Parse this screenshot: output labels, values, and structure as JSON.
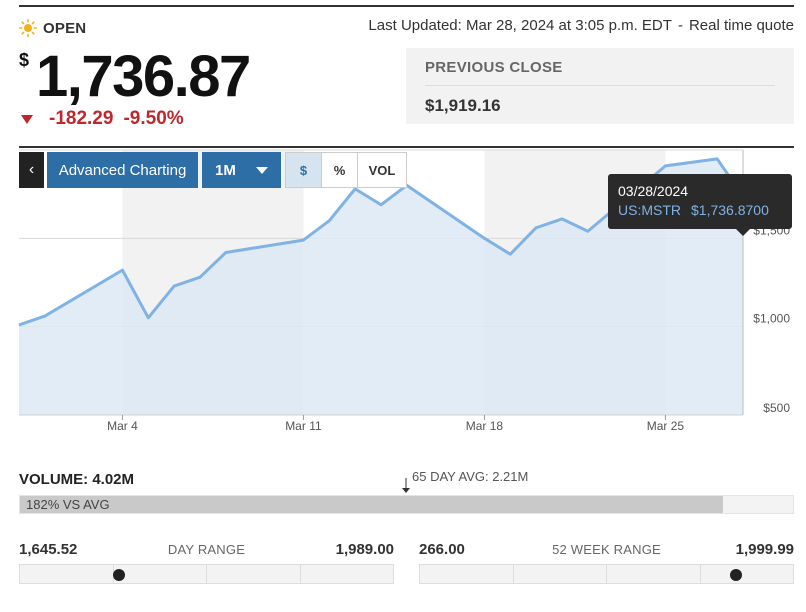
{
  "header": {
    "status_icon": "sun-icon",
    "status_text": "OPEN",
    "last_updated": "Last Updated: Mar 28, 2024 at 3:05 p.m. EDT",
    "separator": "-",
    "quote_type": "Real time quote"
  },
  "quote": {
    "currency_symbol": "$",
    "price": "1,736.87",
    "change": "-182.29",
    "change_pct": "-9.50%",
    "change_color": "#c0272d"
  },
  "previous_close": {
    "label": "PREVIOUS CLOSE",
    "value": "$1,919.16"
  },
  "toolbar": {
    "back_label": "‹",
    "advanced_label": "Advanced Charting",
    "range_label": "1M",
    "dollar_label": "$",
    "percent_label": "%",
    "volume_label": "VOL",
    "accent": "#2d6ea6"
  },
  "tooltip": {
    "date": "03/28/2024",
    "symbol": "US:MSTR",
    "value": "$1,736.8700"
  },
  "chart_data": {
    "type": "area",
    "x": [
      "2024-02-29",
      "2024-03-01",
      "2024-03-04",
      "2024-03-05",
      "2024-03-06",
      "2024-03-07",
      "2024-03-08",
      "2024-03-11",
      "2024-03-12",
      "2024-03-13",
      "2024-03-14",
      "2024-03-15",
      "2024-03-18",
      "2024-03-19",
      "2024-03-20",
      "2024-03-21",
      "2024-03-22",
      "2024-03-25",
      "2024-03-26",
      "2024-03-27",
      "2024-03-28"
    ],
    "series": [
      {
        "values": [
          1010,
          1060,
          1320,
          1050,
          1230,
          1280,
          1420,
          1490,
          1600,
          1780,
          1690,
          1800,
          1500,
          1410,
          1560,
          1610,
          1540,
          1910,
          1930,
          1950,
          1736.87
        ],
        "color": "#7fb2e5"
      }
    ],
    "x_tick_labels": [
      "Mar 4",
      "Mar 11",
      "Mar 18",
      "Mar 25"
    ],
    "x_tick_dates": [
      "2024-03-04",
      "2024-03-11",
      "2024-03-18",
      "2024-03-25"
    ],
    "y_tick_labels": [
      "$500",
      "$1,000",
      "$1,500"
    ],
    "y_tick_values": [
      500,
      1000,
      1500
    ],
    "ylim": [
      500,
      2000
    ],
    "y_axis_side": "right",
    "grid": true
  },
  "volume": {
    "label": "VOLUME: 4.02M",
    "avg_label": "65 DAY AVG: 2.21M",
    "vs_avg_label": "182% VS AVG",
    "vs_avg_pct": 182
  },
  "day_range": {
    "title": "DAY RANGE",
    "low": "1,645.52",
    "high": "1,989.00",
    "current": 1736.87,
    "low_value": 1645.52,
    "high_value": 1989.0
  },
  "week52_range": {
    "title": "52 WEEK RANGE",
    "low": "266.00",
    "high": "1,999.99",
    "current": 1736.87,
    "low_value": 266.0,
    "high_value": 1999.99
  }
}
